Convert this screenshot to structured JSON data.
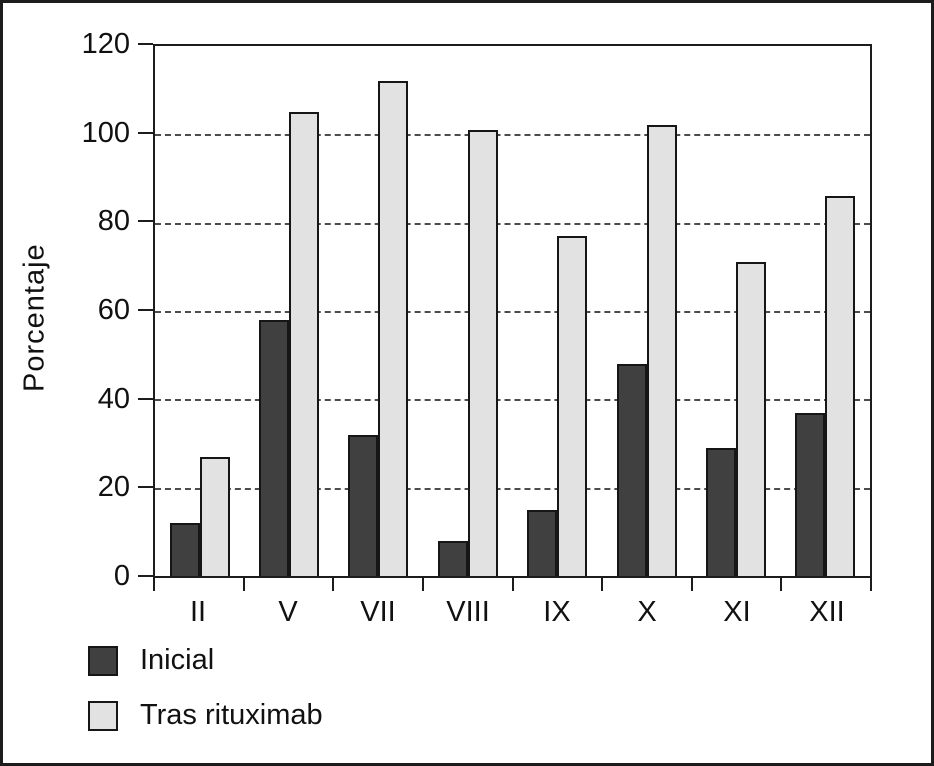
{
  "chart_data": {
    "type": "bar",
    "title": "",
    "xlabel": "",
    "ylabel": "Porcentaje",
    "categories": [
      "II",
      "V",
      "VII",
      "VIII",
      "IX",
      "X",
      "XI",
      "XII"
    ],
    "series": [
      {
        "name": "Inicial",
        "color": "#404040",
        "values": [
          12,
          58,
          32,
          8,
          15,
          48,
          29,
          37
        ]
      },
      {
        "name": "Tras rituximab",
        "color": "#e2e2e2",
        "values": [
          27,
          105,
          112,
          101,
          77,
          102,
          71,
          86
        ]
      }
    ],
    "ylim": [
      0,
      120
    ],
    "yticks": [
      0,
      20,
      40,
      60,
      80,
      100,
      120
    ],
    "grid": "horizontal dashed lines at 20,40,60,80,100",
    "legend_position": "bottom-left",
    "plot_border": "full frame",
    "colors": {
      "axis": "#1c1c1c",
      "grid": "#4c4c4c",
      "background": "#ffffff"
    }
  }
}
